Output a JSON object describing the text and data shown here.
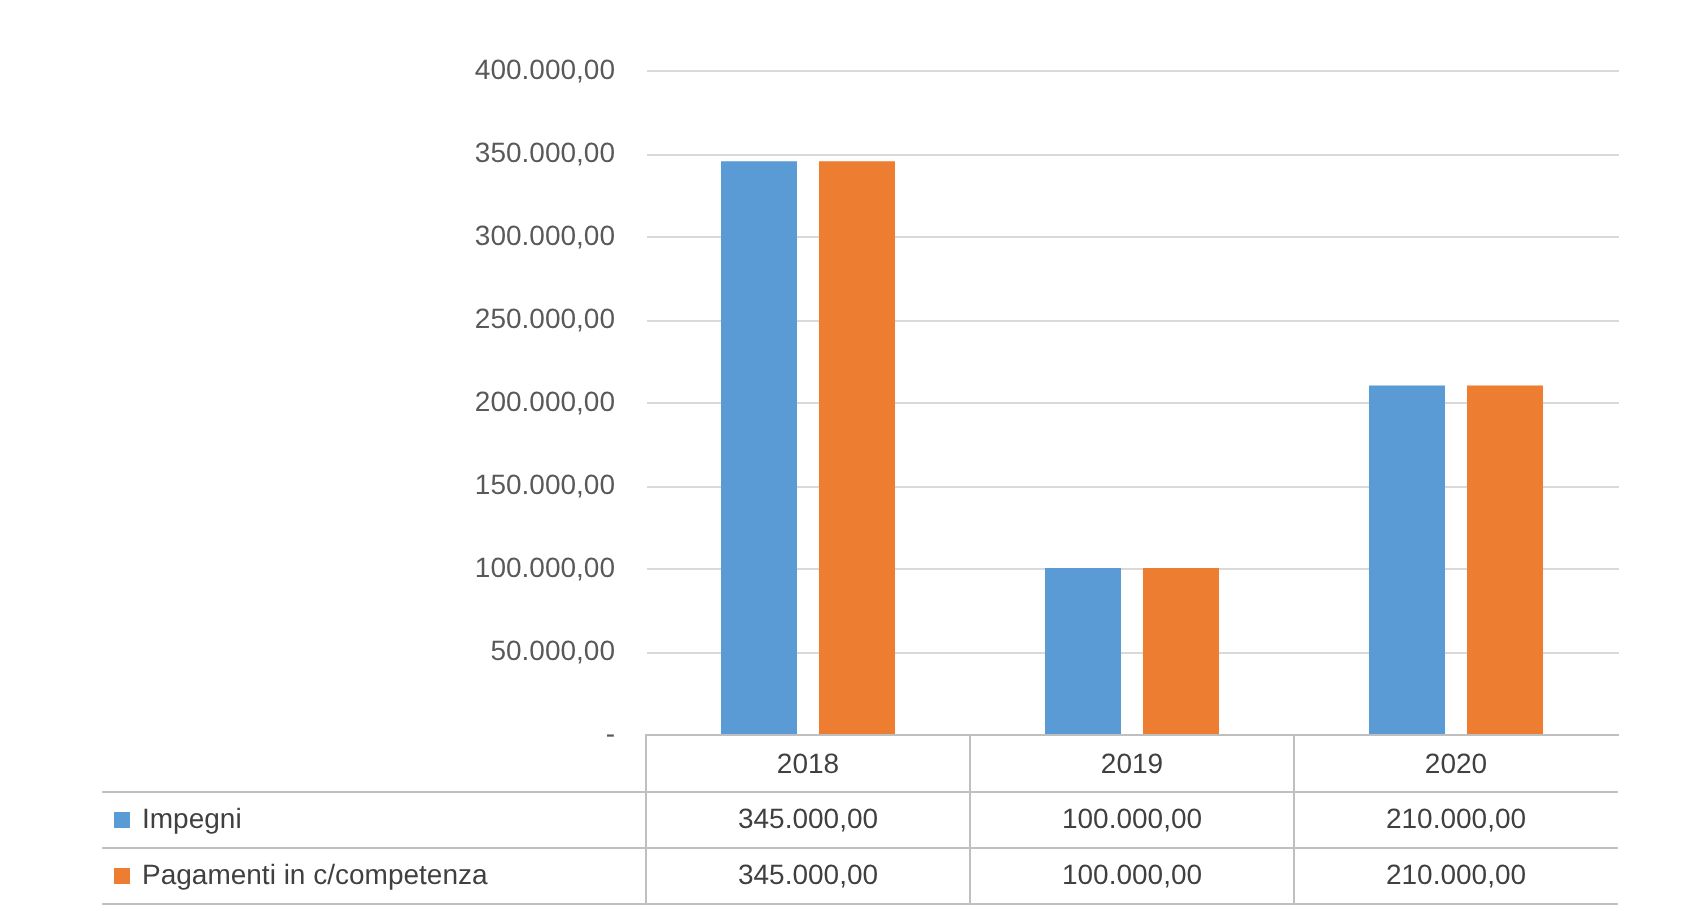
{
  "chart_data": {
    "type": "bar",
    "categories": [
      "2018",
      "2019",
      "2020"
    ],
    "series": [
      {
        "name": "Impegni",
        "color": "#5b9bd5",
        "values": [
          345000,
          100000,
          210000
        ],
        "value_labels": [
          "345.000,00",
          "100.000,00",
          "210.000,00"
        ]
      },
      {
        "name": "Pagamenti in c/competenza",
        "color": "#ed7d31",
        "values": [
          345000,
          100000,
          210000
        ],
        "value_labels": [
          "345.000,00",
          "100.000,00",
          "210.000,00"
        ]
      }
    ],
    "ylim": [
      0,
      400000
    ],
    "yticks": [
      {
        "value": 0,
        "label": "-"
      },
      {
        "value": 50000,
        "label": "50.000,00"
      },
      {
        "value": 100000,
        "label": "100.000,00"
      },
      {
        "value": 150000,
        "label": "150.000,00"
      },
      {
        "value": 200000,
        "label": "200.000,00"
      },
      {
        "value": 250000,
        "label": "250.000,00"
      },
      {
        "value": 300000,
        "label": "300.000,00"
      },
      {
        "value": 350000,
        "label": "350.000,00"
      },
      {
        "value": 400000,
        "label": "400.000,00"
      }
    ],
    "grid": "y",
    "legend": "bottom"
  }
}
